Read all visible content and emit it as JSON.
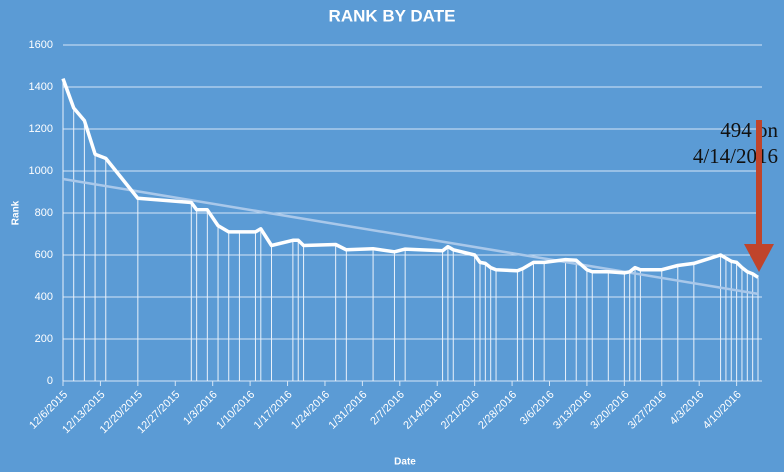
{
  "chart_data": {
    "type": "line",
    "title": "RANK BY DATE",
    "x_label": "Date",
    "y_label": "Rank",
    "x": [
      "12/6/2015",
      "12/8/2015",
      "12/10/2015",
      "12/12/2015",
      "12/14/2015",
      "12/20/2015",
      "12/30/2015",
      "12/31/2015",
      "1/2/2016",
      "1/4/2016",
      "1/6/2016",
      "1/8/2016",
      "1/11/2016",
      "1/12/2016",
      "1/14/2016",
      "1/18/2016",
      "1/19/2016",
      "1/20/2016",
      "1/26/2016",
      "1/28/2016",
      "2/2/2016",
      "2/6/2016",
      "2/8/2016",
      "2/15/2016",
      "2/16/2016",
      "2/17/2016",
      "2/21/2016",
      "2/22/2016",
      "2/23/2016",
      "2/24/2016",
      "2/25/2016",
      "2/29/2016",
      "3/1/2016",
      "3/3/2016",
      "3/5/2016",
      "3/9/2016",
      "3/11/2016",
      "3/13/2016",
      "3/14/2016",
      "3/17/2016",
      "3/20/2016",
      "3/21/2016",
      "3/22/2016",
      "3/23/2016",
      "3/27/2016",
      "3/30/2016",
      "4/2/2016",
      "4/7/2016",
      "4/8/2016",
      "4/9/2016",
      "4/10/2016",
      "4/11/2016",
      "4/12/2016",
      "4/13/2016",
      "4/14/2016"
    ],
    "series": [
      {
        "name": "Rank",
        "color": "#ffffff",
        "values": [
          1440,
          1300,
          1240,
          1080,
          1060,
          870,
          850,
          815,
          815,
          740,
          710,
          710,
          710,
          725,
          645,
          670,
          670,
          645,
          650,
          625,
          630,
          615,
          628,
          620,
          640,
          625,
          600,
          565,
          560,
          540,
          530,
          525,
          535,
          565,
          565,
          578,
          575,
          530,
          520,
          520,
          515,
          520,
          540,
          530,
          530,
          550,
          560,
          600,
          585,
          570,
          565,
          540,
          520,
          510,
          494
        ]
      }
    ],
    "trendline": {
      "color": "#a9c8ea",
      "values": [
        962,
        415
      ]
    },
    "xlim": [
      "12/6/2015",
      "4/14/2016"
    ],
    "xticks": [
      "12/6/2015",
      "12/13/2015",
      "12/20/2015",
      "12/27/2015",
      "1/3/2016",
      "1/10/2016",
      "1/17/2016",
      "1/24/2016",
      "1/31/2016",
      "2/7/2016",
      "2/14/2016",
      "2/21/2016",
      "2/28/2016",
      "3/6/2016",
      "3/13/2016",
      "3/20/2016",
      "3/27/2016",
      "4/3/2016",
      "4/10/2016"
    ],
    "ylim": [
      0,
      1600
    ],
    "yticks": [
      0,
      200,
      400,
      600,
      800,
      1000,
      1200,
      1400,
      1600
    ],
    "grid": true,
    "drop_lines": true,
    "annotation": {
      "lines": [
        "494 on",
        "4/14/2016"
      ],
      "arrow_color": "#c0442b"
    }
  }
}
